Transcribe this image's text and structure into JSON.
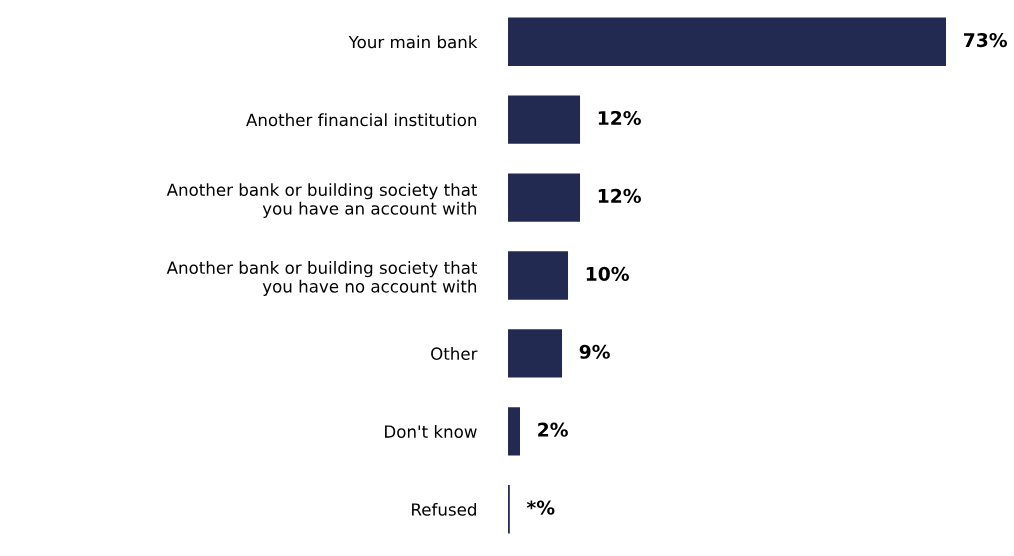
{
  "chart_data": {
    "type": "bar",
    "orientation": "horizontal",
    "categories": [
      "Your main bank",
      "Another financial institution",
      "Another bank or building society that\nyou have an account with",
      "Another bank or building society that\nyou have no account with",
      "Other",
      "Don't know",
      "Refused"
    ],
    "values": [
      73,
      12,
      12,
      10,
      9,
      2,
      0.3
    ],
    "value_labels": [
      "73%",
      "12%",
      "12%",
      "10%",
      "9%",
      "2%",
      "*%"
    ],
    "color": "#222a52",
    "grid": false,
    "legend": false
  }
}
